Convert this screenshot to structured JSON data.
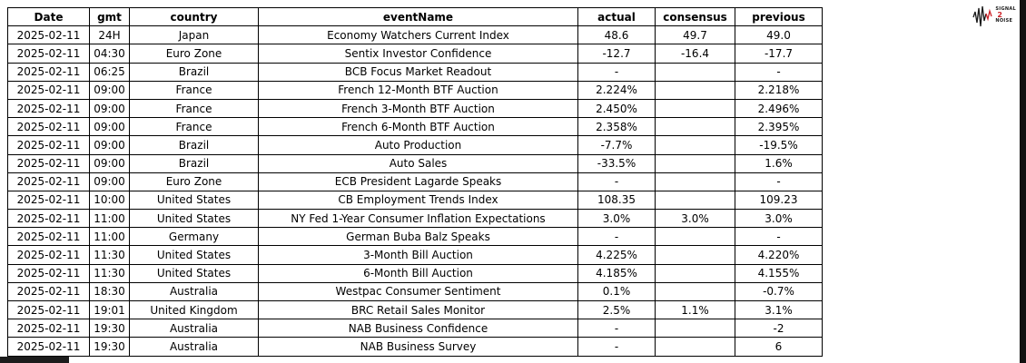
{
  "logo": {
    "signal": "SIGNAL",
    "two": "2",
    "noise": "NOISE",
    "accent_color": "#cc2127"
  },
  "chart_data": {
    "type": "table",
    "title": "",
    "columns": [
      "Date",
      "gmt",
      "country",
      "eventName",
      "actual",
      "consensus",
      "previous"
    ],
    "rows": [
      [
        "2025-02-11",
        "24H",
        "Japan",
        "Economy Watchers Current Index",
        "48.6",
        "49.7",
        "49.0"
      ],
      [
        "2025-02-11",
        "04:30",
        "Euro Zone",
        "Sentix Investor Confidence",
        "-12.7",
        "-16.4",
        "-17.7"
      ],
      [
        "2025-02-11",
        "06:25",
        "Brazil",
        "BCB Focus Market Readout",
        "-",
        "",
        "-"
      ],
      [
        "2025-02-11",
        "09:00",
        "France",
        "French 12-Month BTF Auction",
        "2.224%",
        "",
        "2.218%"
      ],
      [
        "2025-02-11",
        "09:00",
        "France",
        "French 3-Month BTF Auction",
        "2.450%",
        "",
        "2.496%"
      ],
      [
        "2025-02-11",
        "09:00",
        "France",
        "French 6-Month BTF Auction",
        "2.358%",
        "",
        "2.395%"
      ],
      [
        "2025-02-11",
        "09:00",
        "Brazil",
        "Auto Production",
        "-7.7%",
        "",
        "-19.5%"
      ],
      [
        "2025-02-11",
        "09:00",
        "Brazil",
        "Auto Sales",
        "-33.5%",
        "",
        "1.6%"
      ],
      [
        "2025-02-11",
        "09:00",
        "Euro Zone",
        "ECB President Lagarde Speaks",
        "-",
        "",
        "-"
      ],
      [
        "2025-02-11",
        "10:00",
        "United States",
        "CB Employment Trends Index",
        "108.35",
        "",
        "109.23"
      ],
      [
        "2025-02-11",
        "11:00",
        "United States",
        "NY Fed 1-Year Consumer Inflation Expectations",
        "3.0%",
        "3.0%",
        "3.0%"
      ],
      [
        "2025-02-11",
        "11:00",
        "Germany",
        "German Buba Balz Speaks",
        "-",
        "",
        "-"
      ],
      [
        "2025-02-11",
        "11:30",
        "United States",
        "3-Month Bill Auction",
        "4.225%",
        "",
        "4.220%"
      ],
      [
        "2025-02-11",
        "11:30",
        "United States",
        "6-Month Bill Auction",
        "4.185%",
        "",
        "4.155%"
      ],
      [
        "2025-02-11",
        "18:30",
        "Australia",
        "Westpac Consumer Sentiment",
        "0.1%",
        "",
        "-0.7%"
      ],
      [
        "2025-02-11",
        "19:01",
        "United Kingdom",
        "BRC Retail Sales Monitor",
        "2.5%",
        "1.1%",
        "3.1%"
      ],
      [
        "2025-02-11",
        "19:30",
        "Australia",
        "NAB Business Confidence",
        "-",
        "",
        "-2"
      ],
      [
        "2025-02-11",
        "19:30",
        "Australia",
        "NAB Business Survey",
        "-",
        "",
        "6"
      ]
    ]
  }
}
